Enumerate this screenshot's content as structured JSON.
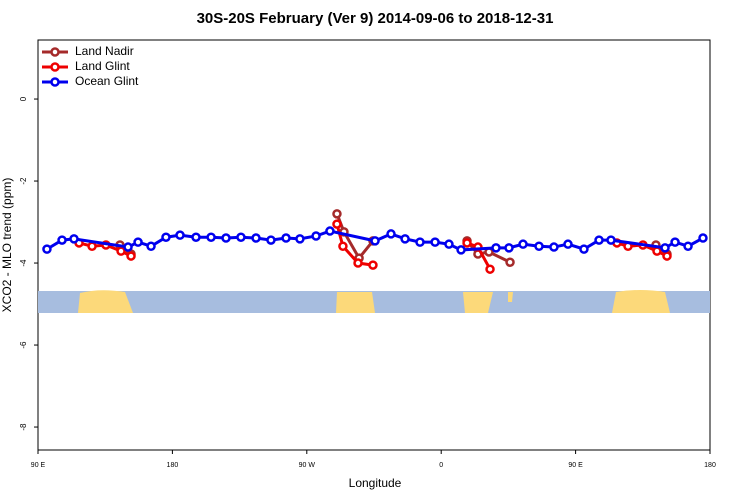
{
  "chart_data": {
    "type": "line",
    "title": "30S-20S February (Ver 9)   2014-09-06 to 2018-12-31",
    "x_label": "Longitude",
    "y_label": "XCO2 - MLO trend (ppm)",
    "xlim": [
      90,
      540
    ],
    "ylim": [
      -8.56,
      1.44
    ],
    "xticks": [
      {
        "value": 90,
        "label": "90 E"
      },
      180,
      {
        "value": 270,
        "label": "90 W"
      },
      {
        "value": 360,
        "label": "0"
      },
      {
        "value": 450,
        "label": "90 E"
      },
      {
        "value": 540,
        "label": "180"
      }
    ],
    "yticks": [
      -8,
      -6,
      -4,
      -2,
      0
    ],
    "legend": "top-left",
    "series": [
      {
        "name": "Land Nadir",
        "color": "#a52a2a",
        "x": [
          144.9,
          152.3,
          null,
          290.2,
          294.9,
          305.0,
          314.3,
          null,
          377.3,
          384.6,
          392.0,
          406.1,
          null,
          503.8,
          511.2
        ],
        "values": [
          -3.56,
          -3.78,
          null,
          -2.8,
          -3.24,
          -3.88,
          -3.46,
          null,
          -3.46,
          -3.78,
          -3.73,
          -3.98,
          null,
          -3.56,
          -3.78
        ]
      },
      {
        "name": "Land Glint",
        "color": "#ee0000",
        "x": [
          117.5,
          126.2,
          135.5,
          145.6,
          152.3,
          null,
          290.2,
          294.2,
          304.3,
          314.3,
          null,
          377.3,
          384.6,
          392.7,
          null,
          477.7,
          485.1,
          495.1,
          504.5,
          511.2
        ],
        "values": [
          -3.51,
          -3.59,
          -3.56,
          -3.71,
          -3.83,
          null,
          -3.05,
          -3.59,
          -4.0,
          -4.05,
          null,
          -3.51,
          -3.61,
          -4.15,
          null,
          -3.51,
          -3.59,
          -3.56,
          -3.71,
          -3.83
        ]
      },
      {
        "name": "Ocean Glint",
        "color": "#0000ee",
        "x": [
          96.0,
          106.1,
          114.1,
          150.3,
          157.0,
          165.7,
          175.7,
          185.1,
          195.8,
          205.9,
          215.9,
          225.9,
          236.0,
          246.0,
          256.1,
          265.4,
          276.2,
          285.5,
          315.7,
          326.4,
          335.8,
          345.8,
          355.9,
          365.2,
          373.3,
          396.7,
          405.4,
          414.8,
          425.5,
          435.5,
          444.9,
          455.6,
          465.7,
          473.7,
          509.9,
          516.6,
          525.3,
          535.3
        ],
        "values": [
          -3.66,
          -3.44,
          -3.41,
          -3.61,
          -3.49,
          -3.59,
          -3.37,
          -3.32,
          -3.37,
          -3.37,
          -3.39,
          -3.37,
          -3.39,
          -3.44,
          -3.39,
          -3.41,
          -3.34,
          -3.22,
          -3.46,
          -3.29,
          -3.41,
          -3.49,
          -3.49,
          -3.54,
          -3.68,
          -3.63,
          -3.63,
          -3.54,
          -3.59,
          -3.61,
          -3.54,
          -3.66,
          -3.44,
          -3.44,
          -3.63,
          -3.49,
          -3.59,
          -3.39
        ]
      }
    ]
  }
}
